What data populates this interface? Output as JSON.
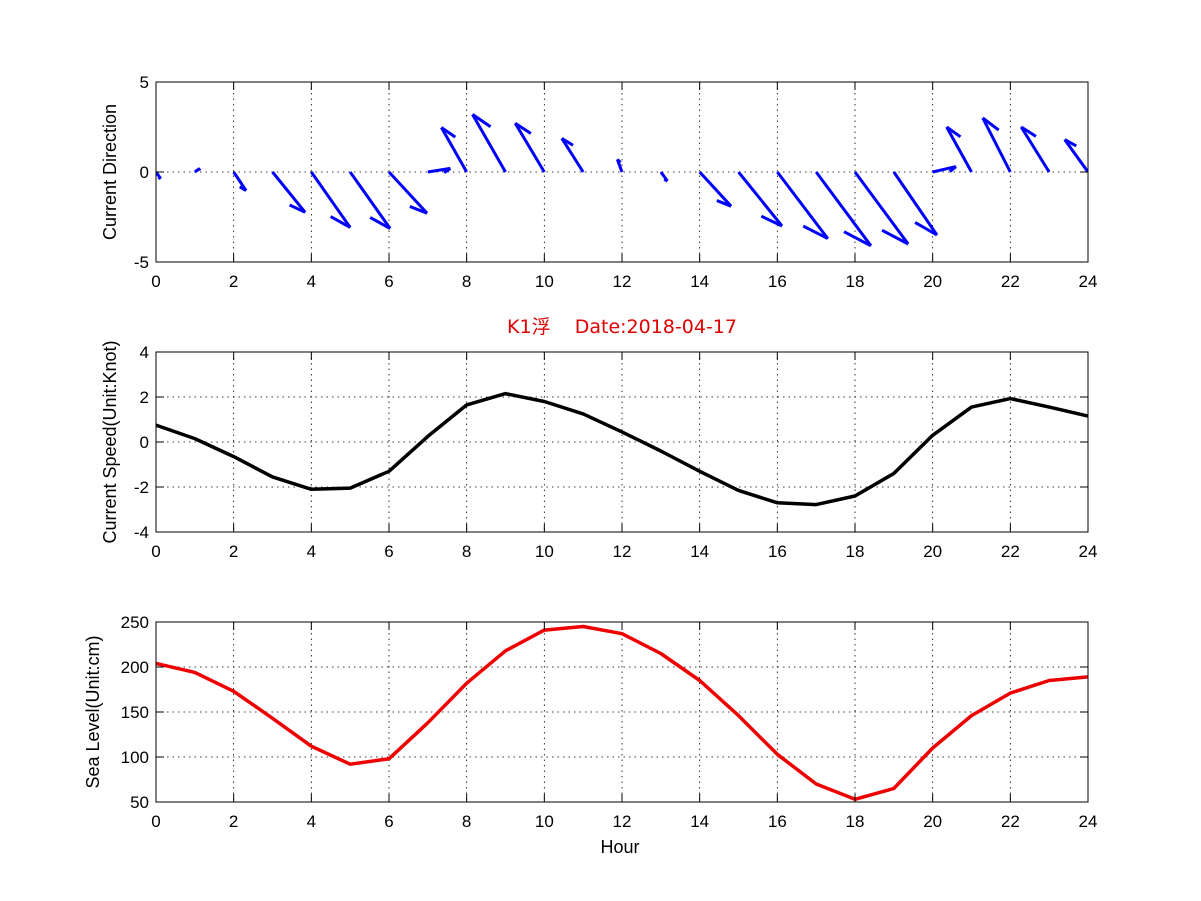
{
  "chart_data": [
    {
      "type": "quiver",
      "ylabel": "Current Direction",
      "xlim": [
        0,
        24
      ],
      "ylim": [
        -5,
        5
      ],
      "xticks": [
        0,
        2,
        4,
        6,
        8,
        10,
        12,
        14,
        16,
        18,
        20,
        22,
        24
      ],
      "yticks": [
        -5,
        0,
        5
      ],
      "grid": true,
      "color": "#0000ff",
      "x": [
        0,
        1,
        2,
        3,
        4,
        5,
        6,
        7,
        8,
        9,
        10,
        11,
        12,
        13,
        14,
        15,
        16,
        17,
        18,
        19,
        20,
        21,
        22,
        23,
        24
      ],
      "u": [
        0.12,
        0.13,
        0.32,
        0.84,
        1.0,
        1.03,
        0.98,
        0.58,
        -0.65,
        -0.85,
        -0.75,
        -0.55,
        -0.12,
        0.17,
        0.81,
        1.12,
        1.3,
        1.41,
        1.37,
        1.11,
        0.6,
        -0.64,
        -0.71,
        -0.72,
        -0.6
      ],
      "v": [
        -0.37,
        0.2,
        -1.03,
        -2.24,
        -3.08,
        -3.14,
        -2.29,
        0.2,
        2.47,
        3.2,
        2.71,
        1.87,
        0.7,
        -0.5,
        -1.9,
        -3.0,
        -3.7,
        -4.1,
        -4.0,
        -3.5,
        0.3,
        2.5,
        3.0,
        2.5,
        1.8
      ]
    },
    {
      "type": "line",
      "title": "K1浮    Date:2018-04-17",
      "ylabel": "Current Speed(Unit:Knot)",
      "xlim": [
        0,
        24
      ],
      "ylim": [
        -4,
        4
      ],
      "xticks": [
        0,
        2,
        4,
        6,
        8,
        10,
        12,
        14,
        16,
        18,
        20,
        22,
        24
      ],
      "yticks": [
        -4,
        -2,
        0,
        2,
        4
      ],
      "grid": true,
      "color": "#000000",
      "x": [
        0,
        1,
        2,
        3,
        4,
        5,
        6,
        7,
        8,
        9,
        10,
        11,
        12,
        13,
        14,
        15,
        16,
        17,
        18,
        19,
        20,
        21,
        22,
        23,
        24
      ],
      "values": [
        0.75,
        0.15,
        -0.65,
        -1.55,
        -2.1,
        -2.05,
        -1.3,
        0.25,
        1.65,
        2.15,
        1.8,
        1.25,
        0.45,
        -0.4,
        -1.3,
        -2.15,
        -2.7,
        -2.78,
        -2.4,
        -1.4,
        0.3,
        1.55,
        1.93,
        1.55,
        1.15
      ]
    },
    {
      "type": "line",
      "xlabel": "Hour",
      "ylabel": "Sea Level(Unit:cm)",
      "xlim": [
        0,
        24
      ],
      "ylim": [
        50,
        250
      ],
      "xticks": [
        0,
        2,
        4,
        6,
        8,
        10,
        12,
        14,
        16,
        18,
        20,
        22,
        24
      ],
      "yticks": [
        50,
        100,
        150,
        200,
        250
      ],
      "grid": true,
      "color": "#ee0000",
      "x": [
        0,
        1,
        2,
        3,
        4,
        5,
        6,
        7,
        8,
        9,
        10,
        11,
        12,
        13,
        14,
        15,
        16,
        17,
        18,
        19,
        20,
        21,
        22,
        23,
        24
      ],
      "values": [
        204,
        194,
        173,
        143,
        112,
        92,
        98,
        138,
        182,
        218,
        241,
        245,
        237,
        215,
        185,
        146,
        103,
        70,
        53,
        65,
        110,
        146,
        171,
        185,
        189
      ]
    }
  ]
}
